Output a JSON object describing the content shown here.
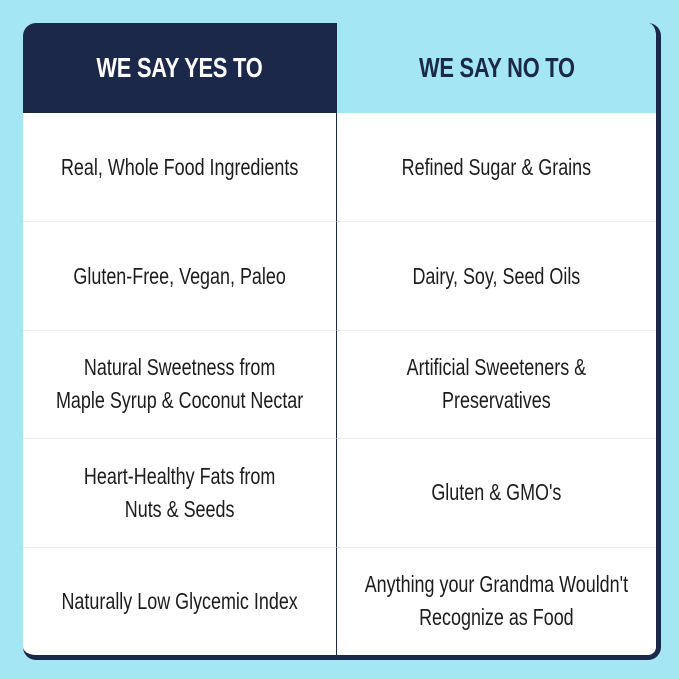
{
  "headers": {
    "yes": "WE SAY YES TO",
    "no": "WE SAY NO TO"
  },
  "rows": [
    {
      "yes": "Real, Whole Food Ingredients",
      "no": "Refined Sugar & Grains"
    },
    {
      "yes": "Gluten-Free, Vegan, Paleo",
      "no": "Dairy, Soy, Seed Oils"
    },
    {
      "yes": "Natural Sweetness from\nMaple Syrup & Coconut Nectar",
      "no": "Artificial Sweeteners &\nPreservatives"
    },
    {
      "yes": "Heart-Healthy Fats from\nNuts & Seeds",
      "no": "Gluten & GMO's"
    },
    {
      "yes": "Naturally Low Glycemic Index",
      "no": "Anything your Grandma Wouldn't\nRecognize as Food"
    }
  ],
  "colors": {
    "navy": "#1b2849",
    "light_blue": "#a5e6f3",
    "white": "#ffffff"
  }
}
